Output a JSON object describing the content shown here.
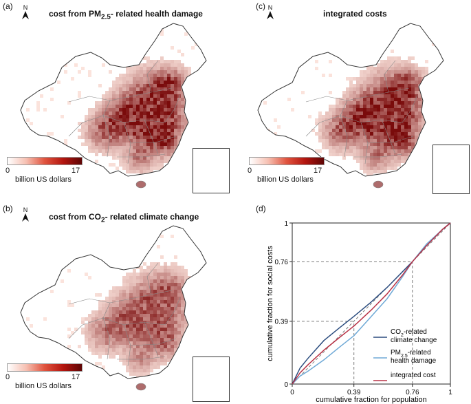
{
  "panels": {
    "a": {
      "label": "(a)",
      "title_prefix": "cost from PM",
      "title_sub": "2.5",
      "title_suffix": "- related health damage",
      "north": "N",
      "legend": {
        "min": "0",
        "max": "17",
        "unit": "billion US dollars"
      }
    },
    "b": {
      "label": "(b)",
      "title_prefix": "cost from CO",
      "title_sub": "2",
      "title_suffix": "- related climate change",
      "north": "N",
      "legend": {
        "min": "0",
        "max": "17",
        "unit": "billion US dollars"
      }
    },
    "c": {
      "label": "(c)",
      "title": "integrated costs",
      "north": "N",
      "legend": {
        "min": "0",
        "max": "17",
        "unit": "billion US dollars"
      }
    },
    "d": {
      "label": "(d)"
    }
  },
  "colors": {
    "co2": "#2b4c7e",
    "pm25": "#6fa9d6",
    "integrated": "#b83246",
    "heat_low": "#fbe3dc",
    "heat_high": "#7a0b0b"
  },
  "chart_data": {
    "type": "line",
    "xlabel": "cumulative fraction for population",
    "ylabel": "cumulative fraction for social costs",
    "xlim": [
      0,
      1
    ],
    "ylim": [
      0,
      1
    ],
    "x_ticks": [
      "0",
      "0.39",
      "0.76",
      "1"
    ],
    "y_ticks": [
      "0",
      "0.39",
      "0.76",
      "1"
    ],
    "reference_points": [
      [
        0.39,
        0.39
      ],
      [
        0.76,
        0.76
      ]
    ],
    "series": [
      {
        "name": "CO2-related climate change",
        "legend_prefix": "CO",
        "legend_sub": "2",
        "legend_line1_suffix": "-related",
        "legend_line2": "climate change",
        "color_key": "co2",
        "x": [
          0,
          0.05,
          0.1,
          0.2,
          0.3,
          0.39,
          0.5,
          0.6,
          0.7,
          0.76,
          0.85,
          0.95,
          1
        ],
        "y": [
          0,
          0.1,
          0.16,
          0.27,
          0.35,
          0.42,
          0.51,
          0.6,
          0.7,
          0.76,
          0.86,
          0.96,
          1
        ]
      },
      {
        "name": "PM2.5-related health damage",
        "legend_prefix": "PM",
        "legend_sub": "2.5",
        "legend_line1_suffix": "-related",
        "legend_line2": "health damage",
        "color_key": "pm25",
        "x": [
          0,
          0.05,
          0.1,
          0.2,
          0.3,
          0.39,
          0.5,
          0.6,
          0.7,
          0.76,
          0.85,
          0.95,
          1
        ],
        "y": [
          0,
          0.05,
          0.08,
          0.15,
          0.23,
          0.3,
          0.42,
          0.53,
          0.67,
          0.76,
          0.87,
          0.96,
          1
        ]
      },
      {
        "name": "integrated cost",
        "legend_prefix": "integrated cost",
        "legend_sub": "",
        "legend_line1_suffix": "",
        "legend_line2": "",
        "color_key": "integrated",
        "x": [
          0,
          0.05,
          0.1,
          0.2,
          0.3,
          0.39,
          0.5,
          0.6,
          0.7,
          0.76,
          0.85,
          0.95,
          1
        ],
        "y": [
          0,
          0.07,
          0.12,
          0.21,
          0.29,
          0.36,
          0.46,
          0.56,
          0.68,
          0.76,
          0.86,
          0.96,
          1
        ]
      }
    ]
  }
}
